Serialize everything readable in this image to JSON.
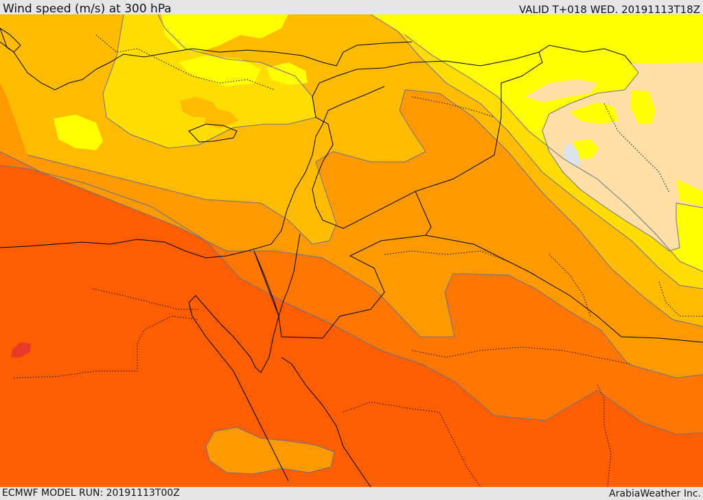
{
  "header": {
    "title": "Wind speed (m/s) at 300 hPa",
    "valid": "VALID T+018 WED. 20191113T18Z"
  },
  "footer": {
    "model_run": "ECMWF MODEL RUN: 20191113T00Z",
    "credit": "ArabiaWeather Inc."
  },
  "map": {
    "colors": {
      "band_lightest": "#FFDFA8",
      "band_1": "#FFFF00",
      "band_2": "#FFDD00",
      "band_3": "#FFBB00",
      "band_4": "#FF9900",
      "band_5": "#FF7700",
      "band_6": "#FF5E00",
      "band_max": "#E83A2A",
      "lake": "#DCE3EA",
      "contour": "#6F6F7F",
      "border": "#000000"
    }
  }
}
